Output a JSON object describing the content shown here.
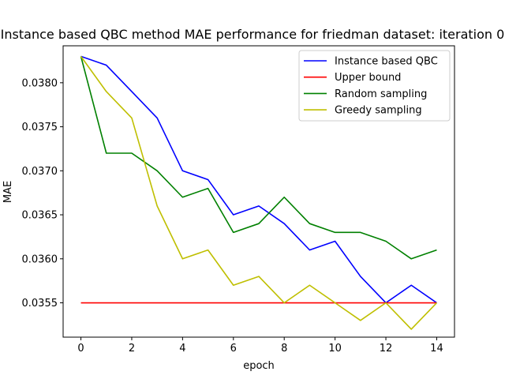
{
  "chart_data": {
    "type": "line",
    "title": "Instance based QBC method MAE performance for friedman dataset: iteration 0",
    "xlabel": "epoch",
    "ylabel": "MAE",
    "xlim": [
      -0.7,
      14.7
    ],
    "ylim": [
      0.03511,
      0.03842
    ],
    "xticks": [
      0,
      2,
      4,
      6,
      8,
      10,
      12,
      14
    ],
    "xtick_labels": [
      "0",
      "2",
      "4",
      "6",
      "8",
      "10",
      "12",
      "14"
    ],
    "yticks": [
      0.0355,
      0.036,
      0.0365,
      0.037,
      0.0375,
      0.038
    ],
    "ytick_labels": [
      "0.0355",
      "0.0360",
      "0.0365",
      "0.0370",
      "0.0375",
      "0.0380"
    ],
    "grid": false,
    "legend_position": "top-right",
    "x": [
      0,
      1,
      2,
      3,
      4,
      5,
      6,
      7,
      8,
      9,
      10,
      11,
      12,
      13,
      14
    ],
    "series": [
      {
        "name": "Instance based QBC",
        "color": "#0000ff",
        "values": [
          0.0383,
          0.0382,
          0.0379,
          0.0376,
          0.037,
          0.0369,
          0.0365,
          0.0366,
          0.0364,
          0.0361,
          0.0362,
          0.0358,
          0.0355,
          0.0357,
          0.0355
        ]
      },
      {
        "name": "Upper bound",
        "color": "#ff0000",
        "values": [
          0.0355,
          0.0355,
          0.0355,
          0.0355,
          0.0355,
          0.0355,
          0.0355,
          0.0355,
          0.0355,
          0.0355,
          0.0355,
          0.0355,
          0.0355,
          0.0355,
          0.0355
        ]
      },
      {
        "name": "Random sampling",
        "color": "#008000",
        "values": [
          0.0383,
          0.0372,
          0.0372,
          0.037,
          0.0367,
          0.0368,
          0.0363,
          0.0364,
          0.0367,
          0.0364,
          0.0363,
          0.0363,
          0.0362,
          0.036,
          0.0361
        ]
      },
      {
        "name": "Greedy sampling",
        "color": "#bfbf00",
        "values": [
          0.0383,
          0.0379,
          0.0376,
          0.0366,
          0.036,
          0.0361,
          0.0357,
          0.0358,
          0.0355,
          0.0357,
          0.0355,
          0.0353,
          0.0355,
          0.0352,
          0.0355
        ]
      }
    ]
  }
}
